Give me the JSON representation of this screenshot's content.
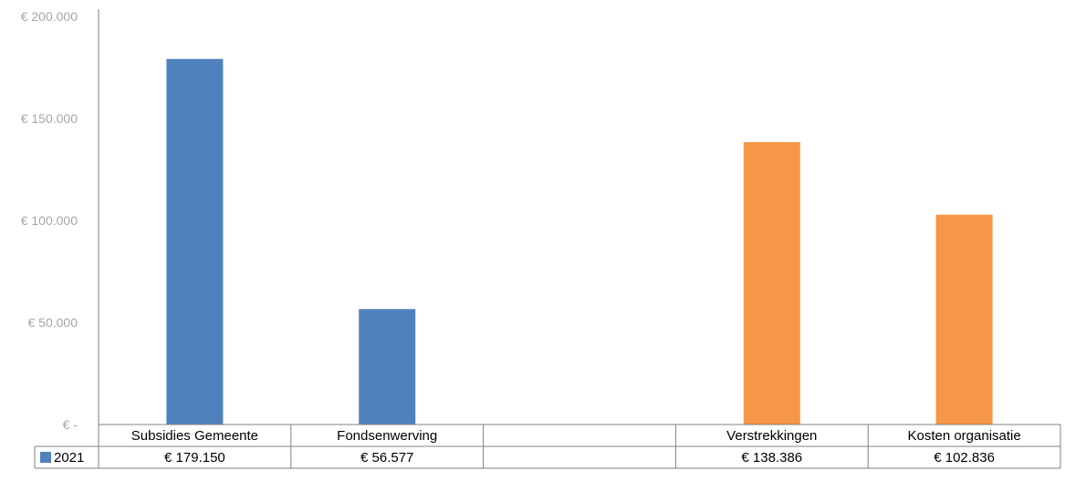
{
  "chart_data": {
    "type": "bar",
    "categories": [
      "Subsidies Gemeente",
      "Fondsenwerving",
      "",
      "Verstrekkingen",
      "Kosten organisatie"
    ],
    "series": [
      {
        "name": "2021",
        "values": [
          179150,
          56577,
          null,
          138386,
          102836
        ]
      }
    ],
    "value_labels": [
      "€ 179.150",
      "€ 56.577",
      "",
      "€ 138.386",
      "€ 102.836"
    ],
    "bar_colors": [
      "#4f81bd",
      "#4f81bd",
      null,
      "#f79646",
      "#f79646"
    ],
    "legend_color": "#4f81bd",
    "ylim": [
      0,
      200000
    ],
    "yticks": [
      0,
      50000,
      100000,
      150000,
      200000
    ],
    "ytick_labels": [
      "€ -",
      "€ 50.000",
      "€ 100.000",
      "€ 150.000",
      "€ 200.000"
    ],
    "title": "",
    "xlabel": "",
    "ylabel": "",
    "grid": false,
    "legend": "data-table"
  }
}
